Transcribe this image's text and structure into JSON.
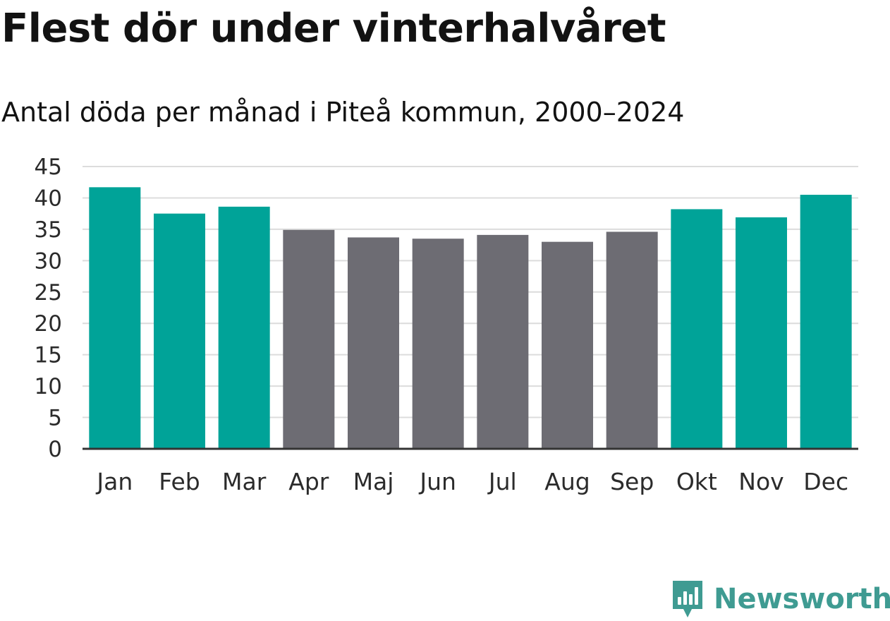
{
  "chart_data": {
    "type": "bar",
    "title": "Flest dör under vinterhalvåret",
    "subtitle": "Antal döda per månad i Piteå kommun, 2000–2024",
    "categories": [
      "Jan",
      "Feb",
      "Mar",
      "Apr",
      "Maj",
      "Jun",
      "Jul",
      "Aug",
      "Sep",
      "Okt",
      "Nov",
      "Dec"
    ],
    "values": [
      41.7,
      37.5,
      38.6,
      34.9,
      33.7,
      33.5,
      34.1,
      33.0,
      34.6,
      38.2,
      36.9,
      40.5
    ],
    "highlight": [
      true,
      true,
      true,
      false,
      false,
      false,
      false,
      false,
      false,
      true,
      true,
      true
    ],
    "ylim": [
      0,
      45
    ],
    "yticks": [
      0,
      5,
      10,
      15,
      20,
      25,
      30,
      35,
      40,
      45
    ],
    "xlabel": "",
    "ylabel": "",
    "grid": true,
    "colors": {
      "highlight": "#00a398",
      "base": "#6d6c73",
      "grid": "#dcdcdc",
      "axis": "#333333"
    }
  },
  "brand": {
    "name": "Newsworthy",
    "color": "#3f9b92",
    "icon": "newsworthy-logo-icon"
  }
}
